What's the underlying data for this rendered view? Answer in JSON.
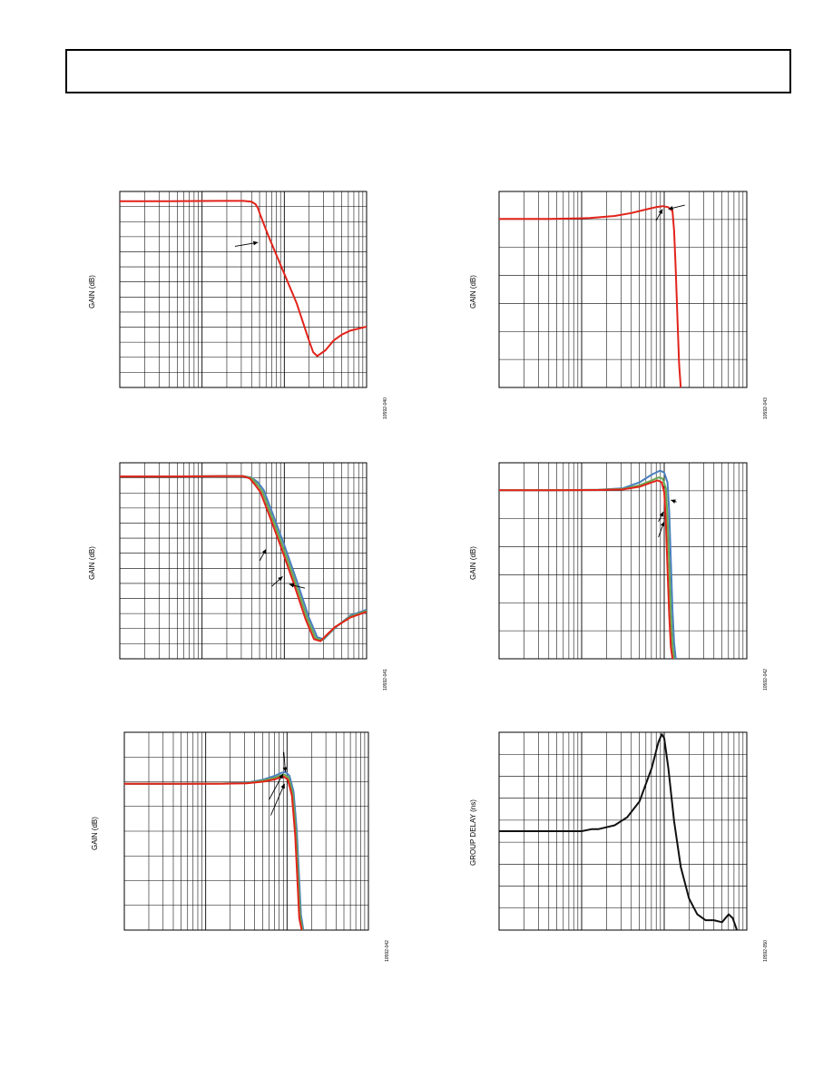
{
  "page": {
    "header": ""
  },
  "chart_data": [
    {
      "id": "c1",
      "type": "line",
      "xscale": "log",
      "grid": true,
      "xdecades": 3,
      "ylabel": "GAIN (dB)",
      "figure_id": "10592-040",
      "series": [
        {
          "color": "#e2231a",
          "x": [
            0,
            0.6,
            1.2,
            1.5,
            1.6,
            1.65,
            1.68,
            1.7,
            1.8,
            2.0,
            2.15,
            2.3,
            2.35,
            2.4,
            2.5,
            2.6,
            2.7,
            2.8,
            3.0
          ],
          "y": [
            0.95,
            0.95,
            0.952,
            0.952,
            0.948,
            0.935,
            0.915,
            0.89,
            0.78,
            0.58,
            0.43,
            0.24,
            0.18,
            0.16,
            0.19,
            0.24,
            0.27,
            0.29,
            0.31
          ]
        }
      ],
      "annotations": [
        {
          "x": 1.68,
          "y": 0.74,
          "tx": 1.4,
          "ty": 0.72
        }
      ]
    },
    {
      "id": "c2",
      "type": "line",
      "xscale": "log",
      "grid": true,
      "xdecades": 3,
      "ylabel": "GAIN (dB)",
      "figure_id": "10592-043",
      "series": [
        {
          "color": "#e2231a",
          "x": [
            0,
            0.6,
            0.9,
            1.1,
            1.4,
            1.6,
            1.8,
            1.9,
            1.98,
            2.05,
            2.1,
            2.12,
            2.14,
            2.16,
            2.18,
            2.2
          ],
          "y": [
            0.86,
            0.86,
            0.862,
            0.865,
            0.875,
            0.89,
            0.91,
            0.92,
            0.925,
            0.92,
            0.9,
            0.8,
            0.6,
            0.35,
            0.12,
            0.0
          ]
        }
      ],
      "annotations": [
        {
          "x": 2.05,
          "y": 0.91,
          "tx": 2.25,
          "ty": 0.93
        },
        {
          "x": 1.98,
          "y": 0.91,
          "tx": 1.9,
          "ty": 0.85
        }
      ]
    },
    {
      "id": "c3",
      "type": "line",
      "xscale": "log",
      "grid": true,
      "xdecades": 3,
      "ylabel": "GAIN (dB)",
      "figure_id": "10592-041",
      "series": [
        {
          "color": "#4a7fbf",
          "x": [
            0,
            0.6,
            1.2,
            1.5,
            1.6,
            1.68,
            1.75,
            1.85,
            2.0,
            2.15,
            2.3,
            2.4,
            2.48,
            2.55,
            2.65,
            2.8,
            3.0
          ],
          "y": [
            0.93,
            0.93,
            0.932,
            0.932,
            0.925,
            0.9,
            0.86,
            0.75,
            0.58,
            0.4,
            0.21,
            0.11,
            0.1,
            0.13,
            0.17,
            0.22,
            0.25
          ]
        },
        {
          "color": "#6aa84f",
          "x": [
            0,
            0.6,
            1.2,
            1.5,
            1.6,
            1.66,
            1.73,
            1.83,
            1.98,
            2.13,
            2.28,
            2.38,
            2.46,
            2.53,
            2.63,
            2.8,
            3.0
          ],
          "y": [
            0.93,
            0.93,
            0.932,
            0.932,
            0.922,
            0.895,
            0.855,
            0.745,
            0.575,
            0.395,
            0.205,
            0.105,
            0.095,
            0.125,
            0.165,
            0.215,
            0.245
          ]
        },
        {
          "color": "#e2231a",
          "x": [
            0,
            0.6,
            1.2,
            1.5,
            1.58,
            1.64,
            1.71,
            1.81,
            1.96,
            2.11,
            2.26,
            2.36,
            2.44,
            2.51,
            2.61,
            2.8,
            3.0
          ],
          "y": [
            0.93,
            0.93,
            0.932,
            0.932,
            0.92,
            0.89,
            0.85,
            0.74,
            0.57,
            0.39,
            0.2,
            0.1,
            0.09,
            0.12,
            0.16,
            0.21,
            0.24
          ]
        }
      ],
      "annotations": [
        {
          "x": 1.78,
          "y": 0.56,
          "tx": 1.7,
          "ty": 0.5
        },
        {
          "x": 1.98,
          "y": 0.42,
          "tx": 1.85,
          "ty": 0.37
        },
        {
          "x": 2.06,
          "y": 0.38,
          "tx": 2.25,
          "ty": 0.36
        }
      ]
    },
    {
      "id": "c4",
      "type": "line",
      "xscale": "log",
      "grid": true,
      "xdecades": 3,
      "ylabel": "GAIN (dB)",
      "figure_id": "10592-042",
      "series": [
        {
          "color": "#4a7fbf",
          "x": [
            0,
            0.6,
            1.2,
            1.5,
            1.7,
            1.85,
            1.95,
            2.0,
            2.04,
            2.06,
            2.08,
            2.1,
            2.12,
            2.14
          ],
          "y": [
            0.86,
            0.86,
            0.862,
            0.87,
            0.9,
            0.94,
            0.96,
            0.95,
            0.9,
            0.75,
            0.5,
            0.25,
            0.08,
            0.0
          ]
        },
        {
          "color": "#6aa84f",
          "x": [
            0,
            0.6,
            1.2,
            1.5,
            1.7,
            1.85,
            1.93,
            1.98,
            2.02,
            2.04,
            2.06,
            2.08,
            2.1,
            2.12
          ],
          "y": [
            0.86,
            0.86,
            0.862,
            0.866,
            0.885,
            0.91,
            0.925,
            0.92,
            0.87,
            0.72,
            0.48,
            0.23,
            0.07,
            0.0
          ]
        },
        {
          "color": "#e2231a",
          "x": [
            0,
            0.6,
            1.2,
            1.5,
            1.7,
            1.85,
            1.92,
            1.97,
            2.0,
            2.02,
            2.04,
            2.06,
            2.08,
            2.1
          ],
          "y": [
            0.86,
            0.86,
            0.861,
            0.864,
            0.878,
            0.9,
            0.91,
            0.9,
            0.85,
            0.7,
            0.46,
            0.22,
            0.06,
            0.0
          ]
        }
      ],
      "annotations": [
        {
          "x": 2.08,
          "y": 0.81,
          "tx": 2.15,
          "ty": 0.8
        },
        {
          "x": 1.99,
          "y": 0.75,
          "tx": 1.93,
          "ty": 0.7
        },
        {
          "x": 2.0,
          "y": 0.7,
          "tx": 1.93,
          "ty": 0.62
        }
      ]
    },
    {
      "id": "c5",
      "type": "line",
      "xscale": "log",
      "grid": true,
      "xdecades": 3,
      "ylabel": "GAIN (dB)",
      "figure_id": "10592-042",
      "series": [
        {
          "color": "#4a7fbf",
          "x": [
            0,
            0.6,
            1.2,
            1.5,
            1.7,
            1.85,
            1.93,
            1.98,
            2.03,
            2.08,
            2.12,
            2.15,
            2.17,
            2.2
          ],
          "y": [
            0.74,
            0.74,
            0.741,
            0.745,
            0.76,
            0.78,
            0.795,
            0.8,
            0.78,
            0.7,
            0.5,
            0.25,
            0.08,
            0.0
          ]
        },
        {
          "color": "#6aa84f",
          "x": [
            0,
            0.6,
            1.2,
            1.5,
            1.7,
            1.85,
            1.92,
            1.97,
            2.02,
            2.07,
            2.11,
            2.14,
            2.16,
            2.19
          ],
          "y": [
            0.74,
            0.74,
            0.741,
            0.743,
            0.755,
            0.77,
            0.782,
            0.786,
            0.77,
            0.69,
            0.49,
            0.24,
            0.07,
            0.0
          ]
        },
        {
          "color": "#e2231a",
          "x": [
            0,
            0.6,
            1.2,
            1.5,
            1.7,
            1.85,
            1.91,
            1.96,
            2.01,
            2.06,
            2.1,
            2.13,
            2.15,
            2.18
          ],
          "y": [
            0.74,
            0.74,
            0.74,
            0.742,
            0.75,
            0.762,
            0.772,
            0.776,
            0.76,
            0.68,
            0.48,
            0.23,
            0.06,
            0.0
          ]
        }
      ],
      "annotations": [
        {
          "x": 1.98,
          "y": 0.8,
          "tx": 1.96,
          "ty": 0.9
        },
        {
          "x": 1.95,
          "y": 0.79,
          "tx": 1.78,
          "ty": 0.66
        },
        {
          "x": 1.97,
          "y": 0.74,
          "tx": 1.8,
          "ty": 0.58
        }
      ]
    },
    {
      "id": "c6",
      "type": "line",
      "xscale": "log",
      "grid": true,
      "xdecades": 3,
      "ylabel": "GROUP DELAY (ns)",
      "figure_id": "10592-050",
      "series": [
        {
          "color": "#111111",
          "x": [
            0,
            0.6,
            1.0,
            1.12,
            1.2,
            1.4,
            1.55,
            1.7,
            1.85,
            1.93,
            1.97,
            2.0,
            2.05,
            2.12,
            2.2,
            2.3,
            2.4,
            2.5,
            2.6,
            2.7,
            2.78,
            2.83,
            2.88
          ],
          "y": [
            0.5,
            0.5,
            0.5,
            0.51,
            0.51,
            0.53,
            0.57,
            0.65,
            0.82,
            0.95,
            0.99,
            0.97,
            0.82,
            0.55,
            0.32,
            0.16,
            0.08,
            0.05,
            0.05,
            0.04,
            0.08,
            0.06,
            0.0
          ]
        }
      ],
      "annotations": []
    }
  ]
}
